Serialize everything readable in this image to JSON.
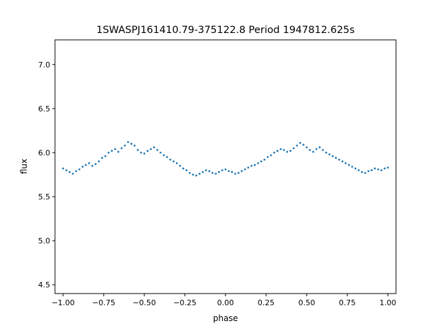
{
  "chart_data": {
    "type": "scatter",
    "title": "1SWASPJ161410.79-375122.8 Period 1947812.625s",
    "xlabel": "phase",
    "ylabel": "flux",
    "xlim": [
      -1.05,
      1.05
    ],
    "ylim": [
      4.4,
      7.28
    ],
    "x_ticks": [
      -1.0,
      -0.75,
      -0.5,
      -0.25,
      0.0,
      0.25,
      0.5,
      0.75,
      1.0
    ],
    "x_tick_labels": [
      "−1.00",
      "−0.75",
      "−0.50",
      "−0.25",
      "0.00",
      "0.25",
      "0.50",
      "0.75",
      "1.00"
    ],
    "y_ticks": [
      4.5,
      5.0,
      5.5,
      6.0,
      6.5,
      7.0
    ],
    "y_tick_labels": [
      "4.5",
      "5.0",
      "5.5",
      "6.0",
      "6.5",
      "7.0"
    ],
    "grid": false,
    "legend": "none",
    "marker_color": "#1f77b4",
    "series": [
      {
        "x": [
          -1.0,
          -0.98,
          -0.96,
          -0.94,
          -0.92,
          -0.9,
          -0.88,
          -0.86,
          -0.84,
          -0.82,
          -0.8,
          -0.78,
          -0.76,
          -0.74,
          -0.72,
          -0.7,
          -0.68,
          -0.66,
          -0.64,
          -0.62,
          -0.6,
          -0.58,
          -0.56,
          -0.54,
          -0.52,
          -0.5,
          -0.48,
          -0.46,
          -0.44,
          -0.42,
          -0.4,
          -0.38,
          -0.36,
          -0.34,
          -0.32,
          -0.3,
          -0.28,
          -0.26,
          -0.24,
          -0.22,
          -0.2,
          -0.18,
          -0.16,
          -0.14,
          -0.12,
          -0.1,
          -0.08,
          -0.06,
          -0.04,
          -0.02,
          0.0,
          0.02,
          0.04,
          0.06,
          0.08,
          0.1,
          0.12,
          0.14,
          0.16,
          0.18,
          0.2,
          0.22,
          0.24,
          0.26,
          0.28,
          0.3,
          0.32,
          0.34,
          0.36,
          0.38,
          0.4,
          0.42,
          0.44,
          0.46,
          0.48,
          0.5,
          0.52,
          0.54,
          0.56,
          0.58,
          0.6,
          0.62,
          0.64,
          0.66,
          0.68,
          0.7,
          0.72,
          0.74,
          0.76,
          0.78,
          0.8,
          0.82,
          0.84,
          0.86,
          0.88,
          0.9,
          0.92,
          0.94,
          0.96,
          0.98,
          1.0
        ],
        "y": [
          5.82,
          5.8,
          5.78,
          5.76,
          5.79,
          5.81,
          5.84,
          5.86,
          5.88,
          5.85,
          5.87,
          5.9,
          5.94,
          5.96,
          6.0,
          6.02,
          6.04,
          6.01,
          6.05,
          6.08,
          6.12,
          6.1,
          6.08,
          6.03,
          6.0,
          5.99,
          6.02,
          6.04,
          6.06,
          6.03,
          6.0,
          5.97,
          5.95,
          5.92,
          5.9,
          5.88,
          5.85,
          5.82,
          5.8,
          5.77,
          5.75,
          5.74,
          5.76,
          5.78,
          5.8,
          5.79,
          5.77,
          5.76,
          5.78,
          5.8,
          5.81,
          5.79,
          5.78,
          5.76,
          5.77,
          5.79,
          5.81,
          5.83,
          5.85,
          5.86,
          5.88,
          5.9,
          5.92,
          5.95,
          5.97,
          6.0,
          6.02,
          6.04,
          6.03,
          6.01,
          6.02,
          6.05,
          6.08,
          6.11,
          6.09,
          6.06,
          6.03,
          6.01,
          6.04,
          6.06,
          6.03,
          6.0,
          5.98,
          5.96,
          5.94,
          5.92,
          5.9,
          5.88,
          5.86,
          5.84,
          5.82,
          5.8,
          5.78,
          5.77,
          5.79,
          5.8,
          5.82,
          5.81,
          5.8,
          5.82,
          5.83
        ]
      }
    ]
  }
}
